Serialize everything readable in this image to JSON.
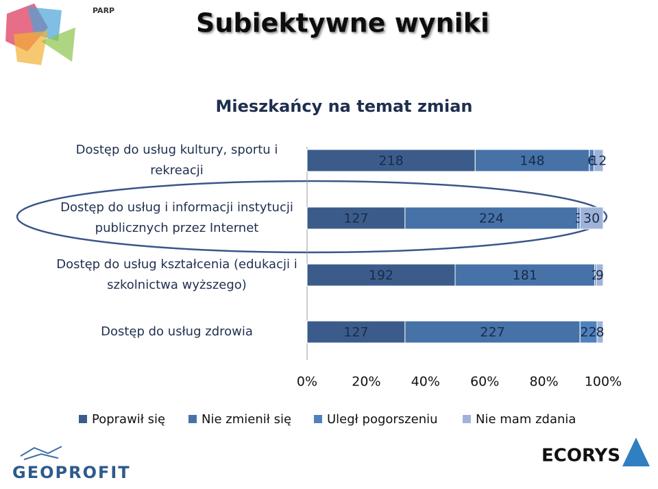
{
  "slide_title": "Subiektywne wyniki",
  "logos": {
    "top": "PARP",
    "bottom_left": "GEOPROFIT",
    "bottom_right": "ECORYS"
  },
  "chart_data": {
    "type": "bar",
    "orientation": "horizontal",
    "stacked_percent": true,
    "title": "Mieszkańcy na temat zmian",
    "categories": [
      [
        "Dostęp do usług  kultury, sportu i",
        "rekreacji"
      ],
      [
        "Dostęp do usług i informacji instytucji",
        "publicznych przez Internet"
      ],
      [
        "Dostęp do usług kształcenia (edukacji i",
        "szkolnictwa wyższego)"
      ],
      [
        "Dostęp do usług zdrowia"
      ]
    ],
    "series": [
      {
        "name": "Poprawił się",
        "color": "#3b5c8b",
        "values": [
          218,
          127,
          192,
          127
        ]
      },
      {
        "name": "Nie zmienił się",
        "color": "#4672a8",
        "values": [
          148,
          224,
          181,
          227
        ]
      },
      {
        "name": "Uległ pogorszeniu",
        "color": "#4f81bd",
        "values": [
          6,
          3,
          2,
          22
        ]
      },
      {
        "name": "Nie mam zdania",
        "color": "#9fb3d9",
        "values": [
          12,
          30,
          9,
          8
        ]
      }
    ],
    "xlim": [
      0,
      100
    ],
    "xticks": [
      {
        "value": 0,
        "label": "0%"
      },
      {
        "value": 20,
        "label": "20%"
      },
      {
        "value": 40,
        "label": "40%"
      },
      {
        "value": 60,
        "label": "60%"
      },
      {
        "value": 80,
        "label": "80%"
      },
      {
        "value": 100,
        "label": "100%"
      }
    ],
    "legend": "bottom"
  }
}
